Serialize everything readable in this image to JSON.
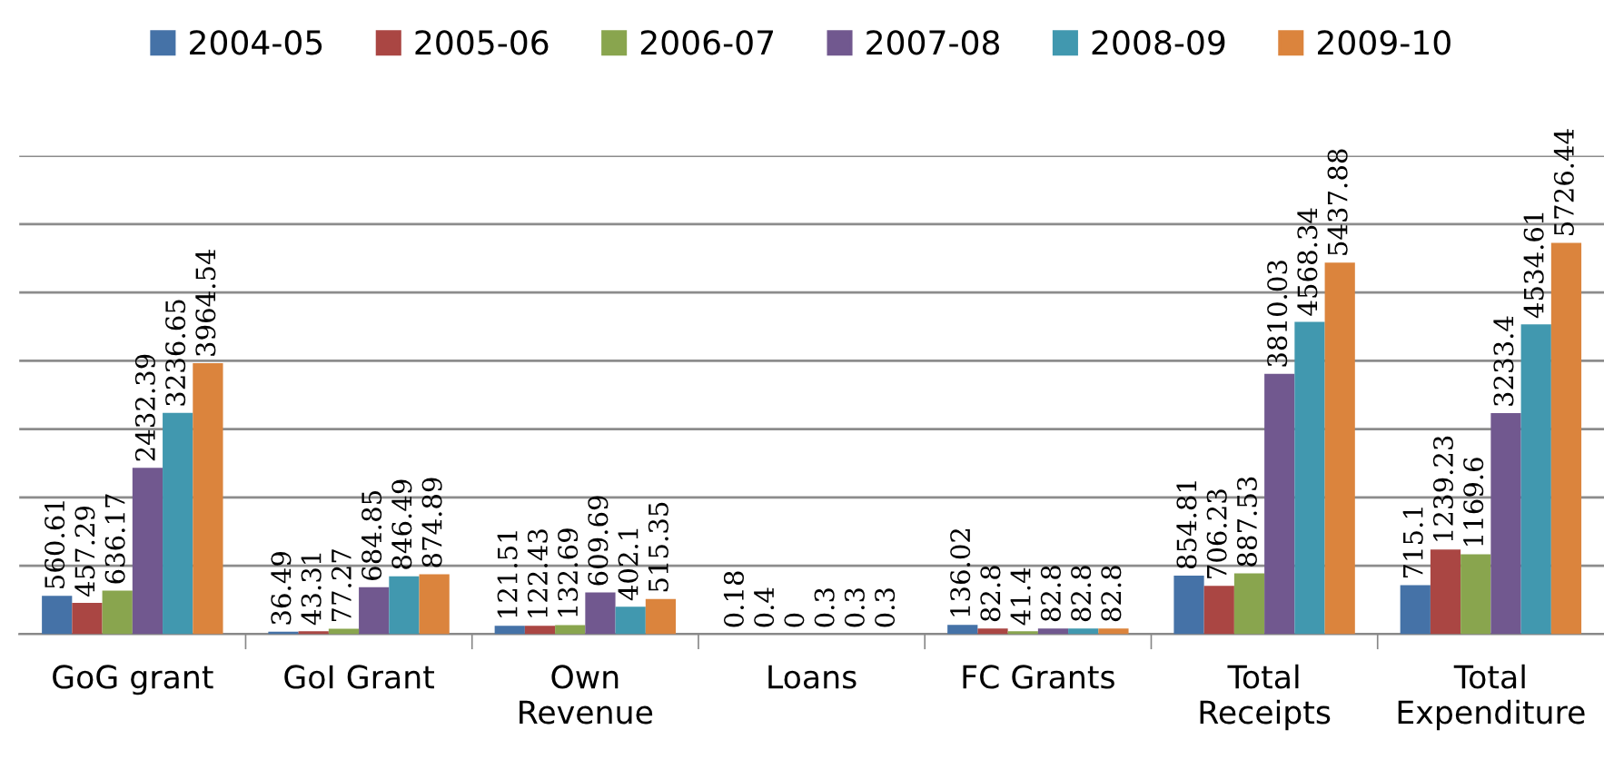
{
  "chart_data": {
    "type": "bar",
    "categories": [
      "GoG grant",
      "GoI Grant",
      "Own\nRevenue",
      "Loans",
      "FC Grants",
      "Total\nReceipts",
      "Total\nExpenditure"
    ],
    "series": [
      {
        "name": "2004-05",
        "color": "#4572a7",
        "values": [
          560.61,
          36.49,
          121.51,
          0.18,
          136.02,
          854.81,
          715.1
        ]
      },
      {
        "name": "2005-06",
        "color": "#aa4643",
        "values": [
          457.29,
          43.31,
          122.43,
          0.4,
          82.8,
          706.23,
          1239.23
        ]
      },
      {
        "name": "2006-07",
        "color": "#89a54e",
        "values": [
          636.17,
          77.27,
          132.69,
          0,
          41.4,
          887.53,
          1169.6
        ]
      },
      {
        "name": "2007-08",
        "color": "#71588f",
        "values": [
          2432.39,
          684.85,
          609.69,
          0.3,
          82.8,
          3810.03,
          3233.4
        ]
      },
      {
        "name": "2008-09",
        "color": "#4198af",
        "values": [
          3236.65,
          846.49,
          402.1,
          0.3,
          82.8,
          4568.34,
          4534.61
        ]
      },
      {
        "name": "2009-10",
        "color": "#db843d",
        "values": [
          3964.54,
          874.89,
          515.35,
          0.3,
          82.8,
          5437.88,
          5726.44
        ]
      }
    ],
    "ylim": [
      0,
      7000
    ],
    "yticks": [
      {
        "value": 0,
        "label": null
      },
      {
        "value": 1000,
        "label": null
      },
      {
        "value": 2000,
        "label": null
      },
      {
        "value": 3000,
        "label": null
      },
      {
        "value": 4000,
        "label": null
      },
      {
        "value": 5000,
        "label": null
      },
      {
        "value": 6000,
        "label": null
      },
      {
        "value": 7000,
        "label": null
      }
    ],
    "grid": "y",
    "legend": "top",
    "data_labels": true
  }
}
